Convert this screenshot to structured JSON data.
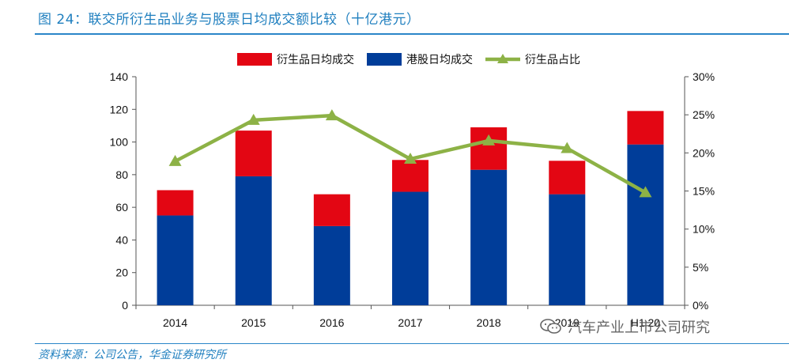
{
  "header": {
    "figure_title": "图 24：联交所衍生品业务与股票日均成交额比较（十亿港元）"
  },
  "footer": {
    "source": "资料来源：公司公告，华金证券研究所",
    "watermark": "汽车产业上市公司研究",
    "watermark_icon": "wechat-icon"
  },
  "chart_data": {
    "type": "bar",
    "stacked": true,
    "categories": [
      "2014",
      "2015",
      "2016",
      "2017",
      "2018",
      "2019",
      "H1 20"
    ],
    "series": [
      {
        "name": "衍生品日均成交",
        "kind": "bar",
        "axis": "left",
        "color": "#e30613",
        "values": [
          15.5,
          28,
          19.5,
          19.5,
          26,
          20.5,
          20.5
        ]
      },
      {
        "name": "港股日均成交",
        "kind": "bar",
        "axis": "left",
        "color": "#003d99",
        "values": [
          55,
          79,
          48.5,
          69.5,
          83,
          68,
          98.5
        ]
      },
      {
        "name": "衍生品占比",
        "kind": "line",
        "axis": "right",
        "color": "#8db246",
        "values": [
          18.9,
          24.3,
          24.9,
          19.2,
          21.6,
          20.6,
          14.8
        ]
      }
    ],
    "legend_order": [
      0,
      1,
      2
    ],
    "y_left": {
      "ylim": [
        0,
        140
      ],
      "ticks": [
        "0",
        "20",
        "40",
        "60",
        "80",
        "100",
        "120",
        "140"
      ]
    },
    "y_right": {
      "ylim": [
        0,
        30
      ],
      "ticks": [
        "0%",
        "5%",
        "10%",
        "15%",
        "20%",
        "25%",
        "30%"
      ]
    },
    "legend_position": "top-center",
    "grid": false
  }
}
